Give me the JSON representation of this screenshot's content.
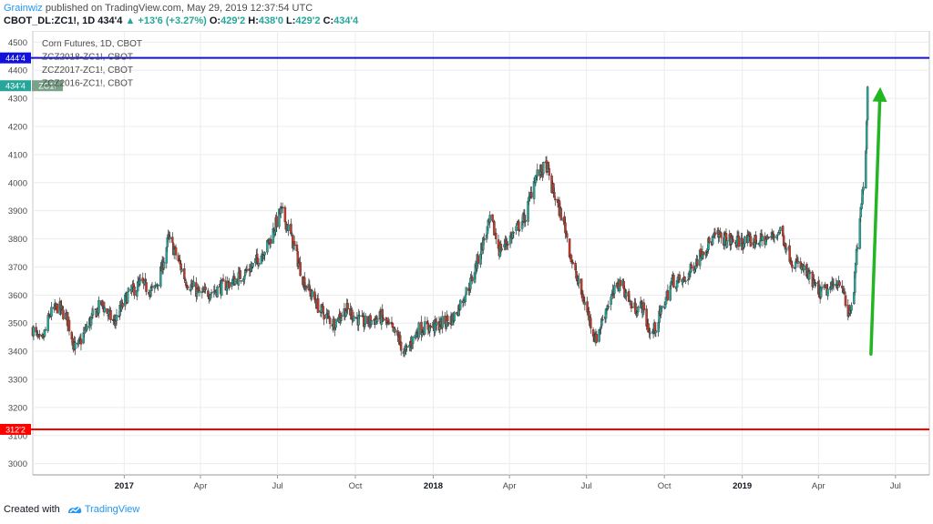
{
  "header": {
    "author": "Grainwiz",
    "published_text": " published on TradingView.com, May 29, 2019 12:37:54 UTC",
    "symbol": "CBOT_DL:ZC1!, 1D",
    "last": "434'4",
    "change": "+13'6 (+3.27%)",
    "open_label": "O:",
    "open": "429'2",
    "high_label": "H:",
    "high": "438'0",
    "low_label": "L:",
    "low": "429'2",
    "close_label": "C:",
    "close": "434'4"
  },
  "footer": {
    "created_with": "Created with",
    "brand": "TradingView"
  },
  "colors": {
    "up": "#26a69a",
    "down": "#c0392b",
    "blue_line": "#1212d8",
    "red_line": "#ff0000",
    "arrow": "#22b622",
    "axis_text": "#4a4a4a"
  },
  "chart_data": {
    "type": "candlestick",
    "legend": [
      "Corn Futures, 1D, CBOT",
      "ZCZ2018-ZC1!, CBOT",
      "ZCZ2017-ZC1!, CBOT",
      "ZCZ2016-ZC1!, CBOT"
    ],
    "legend_placement": "top-left",
    "y_ticks": [
      "4500",
      "4400",
      "4300",
      "4200",
      "4100",
      "4000",
      "3900",
      "3800",
      "3700",
      "3600",
      "3500",
      "3400",
      "3300",
      "3200",
      "3100",
      "3000"
    ],
    "y_tick_values": [
      4500,
      4400,
      4300,
      4200,
      4100,
      4000,
      3900,
      3800,
      3700,
      3600,
      3500,
      3400,
      3300,
      3200,
      3100,
      3000
    ],
    "ylim": [
      2960,
      4540
    ],
    "x_range": [
      "2016-09-15",
      "2019-08-10"
    ],
    "x_ticks": [
      {
        "label": "2017",
        "date": "2017-01-01",
        "bold": true
      },
      {
        "label": "Apr",
        "date": "2017-04-01"
      },
      {
        "label": "Jul",
        "date": "2017-07-01"
      },
      {
        "label": "Oct",
        "date": "2017-10-01"
      },
      {
        "label": "2018",
        "date": "2018-01-01",
        "bold": true
      },
      {
        "label": "Apr",
        "date": "2018-04-01"
      },
      {
        "label": "Jul",
        "date": "2018-07-01"
      },
      {
        "label": "Oct",
        "date": "2018-10-01"
      },
      {
        "label": "2019",
        "date": "2019-01-01",
        "bold": true
      },
      {
        "label": "Apr",
        "date": "2019-04-01"
      },
      {
        "label": "Jul",
        "date": "2019-07-01"
      }
    ],
    "grid": true,
    "price_path": [
      [
        "2016-09-15",
        3480
      ],
      [
        "2016-09-25",
        3420
      ],
      [
        "2016-10-05",
        3530
      ],
      [
        "2016-10-15",
        3560
      ],
      [
        "2016-10-25",
        3520
      ],
      [
        "2016-11-05",
        3400
      ],
      [
        "2016-11-20",
        3500
      ],
      [
        "2016-12-05",
        3570
      ],
      [
        "2016-12-20",
        3500
      ],
      [
        "2017-01-05",
        3600
      ],
      [
        "2017-01-20",
        3640
      ],
      [
        "2017-02-05",
        3610
      ],
      [
        "2017-02-15",
        3700
      ],
      [
        "2017-02-22",
        3800
      ],
      [
        "2017-03-01",
        3760
      ],
      [
        "2017-03-15",
        3650
      ],
      [
        "2017-04-01",
        3600
      ],
      [
        "2017-04-20",
        3620
      ],
      [
        "2017-05-10",
        3650
      ],
      [
        "2017-06-01",
        3700
      ],
      [
        "2017-06-20",
        3780
      ],
      [
        "2017-07-05",
        3900
      ],
      [
        "2017-07-15",
        3830
      ],
      [
        "2017-08-01",
        3650
      ],
      [
        "2017-08-20",
        3550
      ],
      [
        "2017-09-05",
        3500
      ],
      [
        "2017-09-20",
        3550
      ],
      [
        "2017-10-10",
        3500
      ],
      [
        "2017-11-01",
        3520
      ],
      [
        "2017-11-20",
        3450
      ],
      [
        "2017-11-28",
        3390
      ],
      [
        "2017-12-15",
        3480
      ],
      [
        "2018-01-05",
        3490
      ],
      [
        "2018-01-25",
        3520
      ],
      [
        "2018-02-15",
        3650
      ],
      [
        "2018-02-28",
        3780
      ],
      [
        "2018-03-10",
        3870
      ],
      [
        "2018-03-20",
        3760
      ],
      [
        "2018-04-01",
        3800
      ],
      [
        "2018-04-20",
        3880
      ],
      [
        "2018-05-01",
        4020
      ],
      [
        "2018-05-15",
        4060
      ],
      [
        "2018-05-20",
        3990
      ],
      [
        "2018-06-05",
        3850
      ],
      [
        "2018-06-15",
        3700
      ],
      [
        "2018-07-01",
        3550
      ],
      [
        "2018-07-12",
        3440
      ],
      [
        "2018-07-25",
        3560
      ],
      [
        "2018-08-10",
        3650
      ],
      [
        "2018-08-25",
        3550
      ],
      [
        "2018-09-05",
        3560
      ],
      [
        "2018-09-15",
        3450
      ],
      [
        "2018-09-25",
        3520
      ],
      [
        "2018-10-10",
        3650
      ],
      [
        "2018-10-25",
        3650
      ],
      [
        "2018-11-15",
        3760
      ],
      [
        "2018-12-01",
        3810
      ],
      [
        "2018-12-20",
        3790
      ],
      [
        "2019-01-10",
        3790
      ],
      [
        "2019-02-01",
        3800
      ],
      [
        "2019-02-15",
        3830
      ],
      [
        "2019-03-01",
        3720
      ],
      [
        "2019-03-15",
        3690
      ],
      [
        "2019-04-01",
        3610
      ],
      [
        "2019-04-15",
        3620
      ],
      [
        "2019-04-28",
        3660
      ],
      [
        "2019-05-05",
        3520
      ],
      [
        "2019-05-12",
        3580
      ],
      [
        "2019-05-17",
        3780
      ],
      [
        "2019-05-22",
        3920
      ],
      [
        "2019-05-27",
        4130
      ],
      [
        "2019-05-29",
        4345
      ]
    ],
    "horizontal_lines": [
      {
        "value": 4444,
        "label": "444'4",
        "color": "#1212d8"
      },
      {
        "value": 3122,
        "label": "312'2",
        "color": "#ff0000"
      }
    ],
    "price_tag": {
      "value": 4345,
      "label": "434'4",
      "symbol": "ZC1!"
    },
    "arrow": {
      "from": [
        "2019-06-02",
        3390
      ],
      "to": [
        "2019-06-13",
        4340
      ]
    }
  }
}
